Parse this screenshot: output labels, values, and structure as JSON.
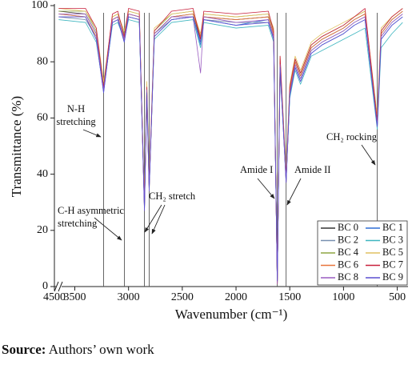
{
  "chart_data": {
    "type": "line",
    "ylabel": "Transmittance (%)",
    "xlabel": "Wavenumber (cm⁻¹)",
    "xlim": [
      4500,
      400
    ],
    "xbreak": [
      4450,
      3660
    ],
    "xticks": [
      4500,
      3500,
      3000,
      2500,
      2000,
      1500,
      1000,
      500
    ],
    "ylim": [
      0,
      100
    ],
    "yticks": [
      0,
      20,
      40,
      60,
      80,
      100
    ],
    "legend": "lower right",
    "x": [
      3650,
      3400,
      3300,
      3232,
      3150,
      3100,
      3040,
      3000,
      2900,
      2852,
      2830,
      2808,
      2760,
      2600,
      2400,
      2330,
      2300,
      2000,
      1700,
      1650,
      1616,
      1590,
      1534,
      1500,
      1450,
      1400,
      1300,
      1200,
      1100,
      1000,
      900,
      800,
      686,
      650,
      550,
      450
    ],
    "series": [
      {
        "name": "BC 0",
        "color": "#333333",
        "values": [
          98,
          97,
          90,
          70,
          95,
          96,
          88,
          97,
          96,
          28,
          70,
          35,
          90,
          96,
          97,
          88,
          96,
          95,
          96,
          90,
          1,
          80,
          38,
          70,
          80,
          75,
          85,
          88,
          90,
          92,
          95,
          97,
          58,
          90,
          95,
          98
        ]
      },
      {
        "name": "BC 1",
        "color": "#2f6fd6",
        "values": [
          97,
          96,
          88,
          69,
          94,
          95,
          87,
          96,
          95,
          27,
          68,
          34,
          89,
          95,
          96,
          86,
          95,
          93,
          95,
          88,
          2,
          78,
          37,
          68,
          78,
          73,
          83,
          86,
          88,
          90,
          93,
          95,
          57,
          88,
          93,
          96
        ]
      },
      {
        "name": "BC 2",
        "color": "#7890b0",
        "values": [
          96,
          95,
          89,
          71,
          94,
          95,
          89,
          96,
          95,
          29,
          71,
          36,
          90,
          95,
          96,
          87,
          95,
          94,
          94,
          89,
          1,
          79,
          39,
          69,
          79,
          74,
          84,
          87,
          89,
          91,
          94,
          96,
          59,
          89,
          94,
          97
        ]
      },
      {
        "name": "BC 3",
        "color": "#3fb6c0",
        "values": [
          95,
          94,
          87,
          70,
          93,
          94,
          88,
          95,
          94,
          28,
          69,
          35,
          88,
          94,
          95,
          85,
          94,
          92,
          93,
          87,
          2,
          77,
          38,
          67,
          77,
          72,
          82,
          84,
          86,
          88,
          90,
          92,
          56,
          85,
          90,
          94
        ]
      },
      {
        "name": "BC 4",
        "color": "#8ea642",
        "values": [
          98,
          98,
          91,
          72,
          96,
          97,
          90,
          98,
          97,
          30,
          72,
          37,
          91,
          97,
          98,
          89,
          97,
          96,
          97,
          91,
          1,
          81,
          40,
          71,
          81,
          76,
          86,
          89,
          91,
          93,
          96,
          98,
          60,
          91,
          96,
          99
        ]
      },
      {
        "name": "BC 5",
        "color": "#e0c060",
        "values": [
          99,
          98,
          92,
          73,
          96,
          97,
          91,
          98,
          97,
          31,
          73,
          38,
          92,
          97,
          98,
          90,
          97,
          96,
          97,
          92,
          2,
          82,
          41,
          72,
          82,
          77,
          87,
          90,
          92,
          94,
          96,
          98,
          61,
          92,
          96,
          99
        ]
      },
      {
        "name": "BC 6",
        "color": "#e8743b",
        "values": [
          97,
          96,
          89,
          70,
          95,
          96,
          88,
          97,
          96,
          27,
          70,
          34,
          90,
          96,
          97,
          89,
          96,
          95,
          96,
          90,
          1,
          80,
          37,
          70,
          80,
          75,
          85,
          88,
          90,
          92,
          95,
          97,
          58,
          90,
          95,
          98
        ]
      },
      {
        "name": "BC 7",
        "color": "#c8203c",
        "values": [
          99,
          99,
          92,
          71,
          97,
          98,
          89,
          99,
          98,
          29,
          71,
          36,
          91,
          98,
          99,
          88,
          98,
          97,
          98,
          91,
          1,
          82,
          39,
          71,
          81,
          76,
          86,
          89,
          91,
          93,
          96,
          99,
          59,
          91,
          96,
          99
        ]
      },
      {
        "name": "BC 8",
        "color": "#9a5cc0",
        "values": [
          97,
          97,
          90,
          70,
          95,
          96,
          88,
          97,
          96,
          28,
          70,
          35,
          90,
          96,
          96,
          76,
          96,
          94,
          95,
          89,
          1,
          79,
          38,
          69,
          79,
          74,
          84,
          87,
          89,
          91,
          94,
          96,
          57,
          89,
          94,
          97
        ]
      },
      {
        "name": "BC 9",
        "color": "#5a4fd0",
        "values": [
          96,
          96,
          88,
          69,
          94,
          95,
          87,
          96,
          95,
          27,
          69,
          34,
          89,
          95,
          96,
          87,
          95,
          93,
          94,
          88,
          2,
          78,
          37,
          68,
          78,
          73,
          83,
          86,
          88,
          90,
          93,
          95,
          57,
          88,
          93,
          96
        ]
      }
    ],
    "annotations": [
      {
        "lines": [
          "N-H",
          "stretching"
        ],
        "x": 3232
      },
      {
        "lines": [
          "C-H asymmetric",
          "stretching"
        ],
        "x": 3038
      },
      {
        "lines": [
          "CH₂ stretch"
        ],
        "x": 2852
      },
      {
        "lines": [],
        "x": 2808
      },
      {
        "lines": [
          "Amide I"
        ],
        "x": 1616
      },
      {
        "lines": [
          "Amide II"
        ],
        "x": 1534
      },
      {
        "lines": [
          "CH₂ rocking"
        ],
        "x": 686
      }
    ]
  },
  "source": {
    "label": "Source:",
    "text": "Authors’ own work"
  }
}
